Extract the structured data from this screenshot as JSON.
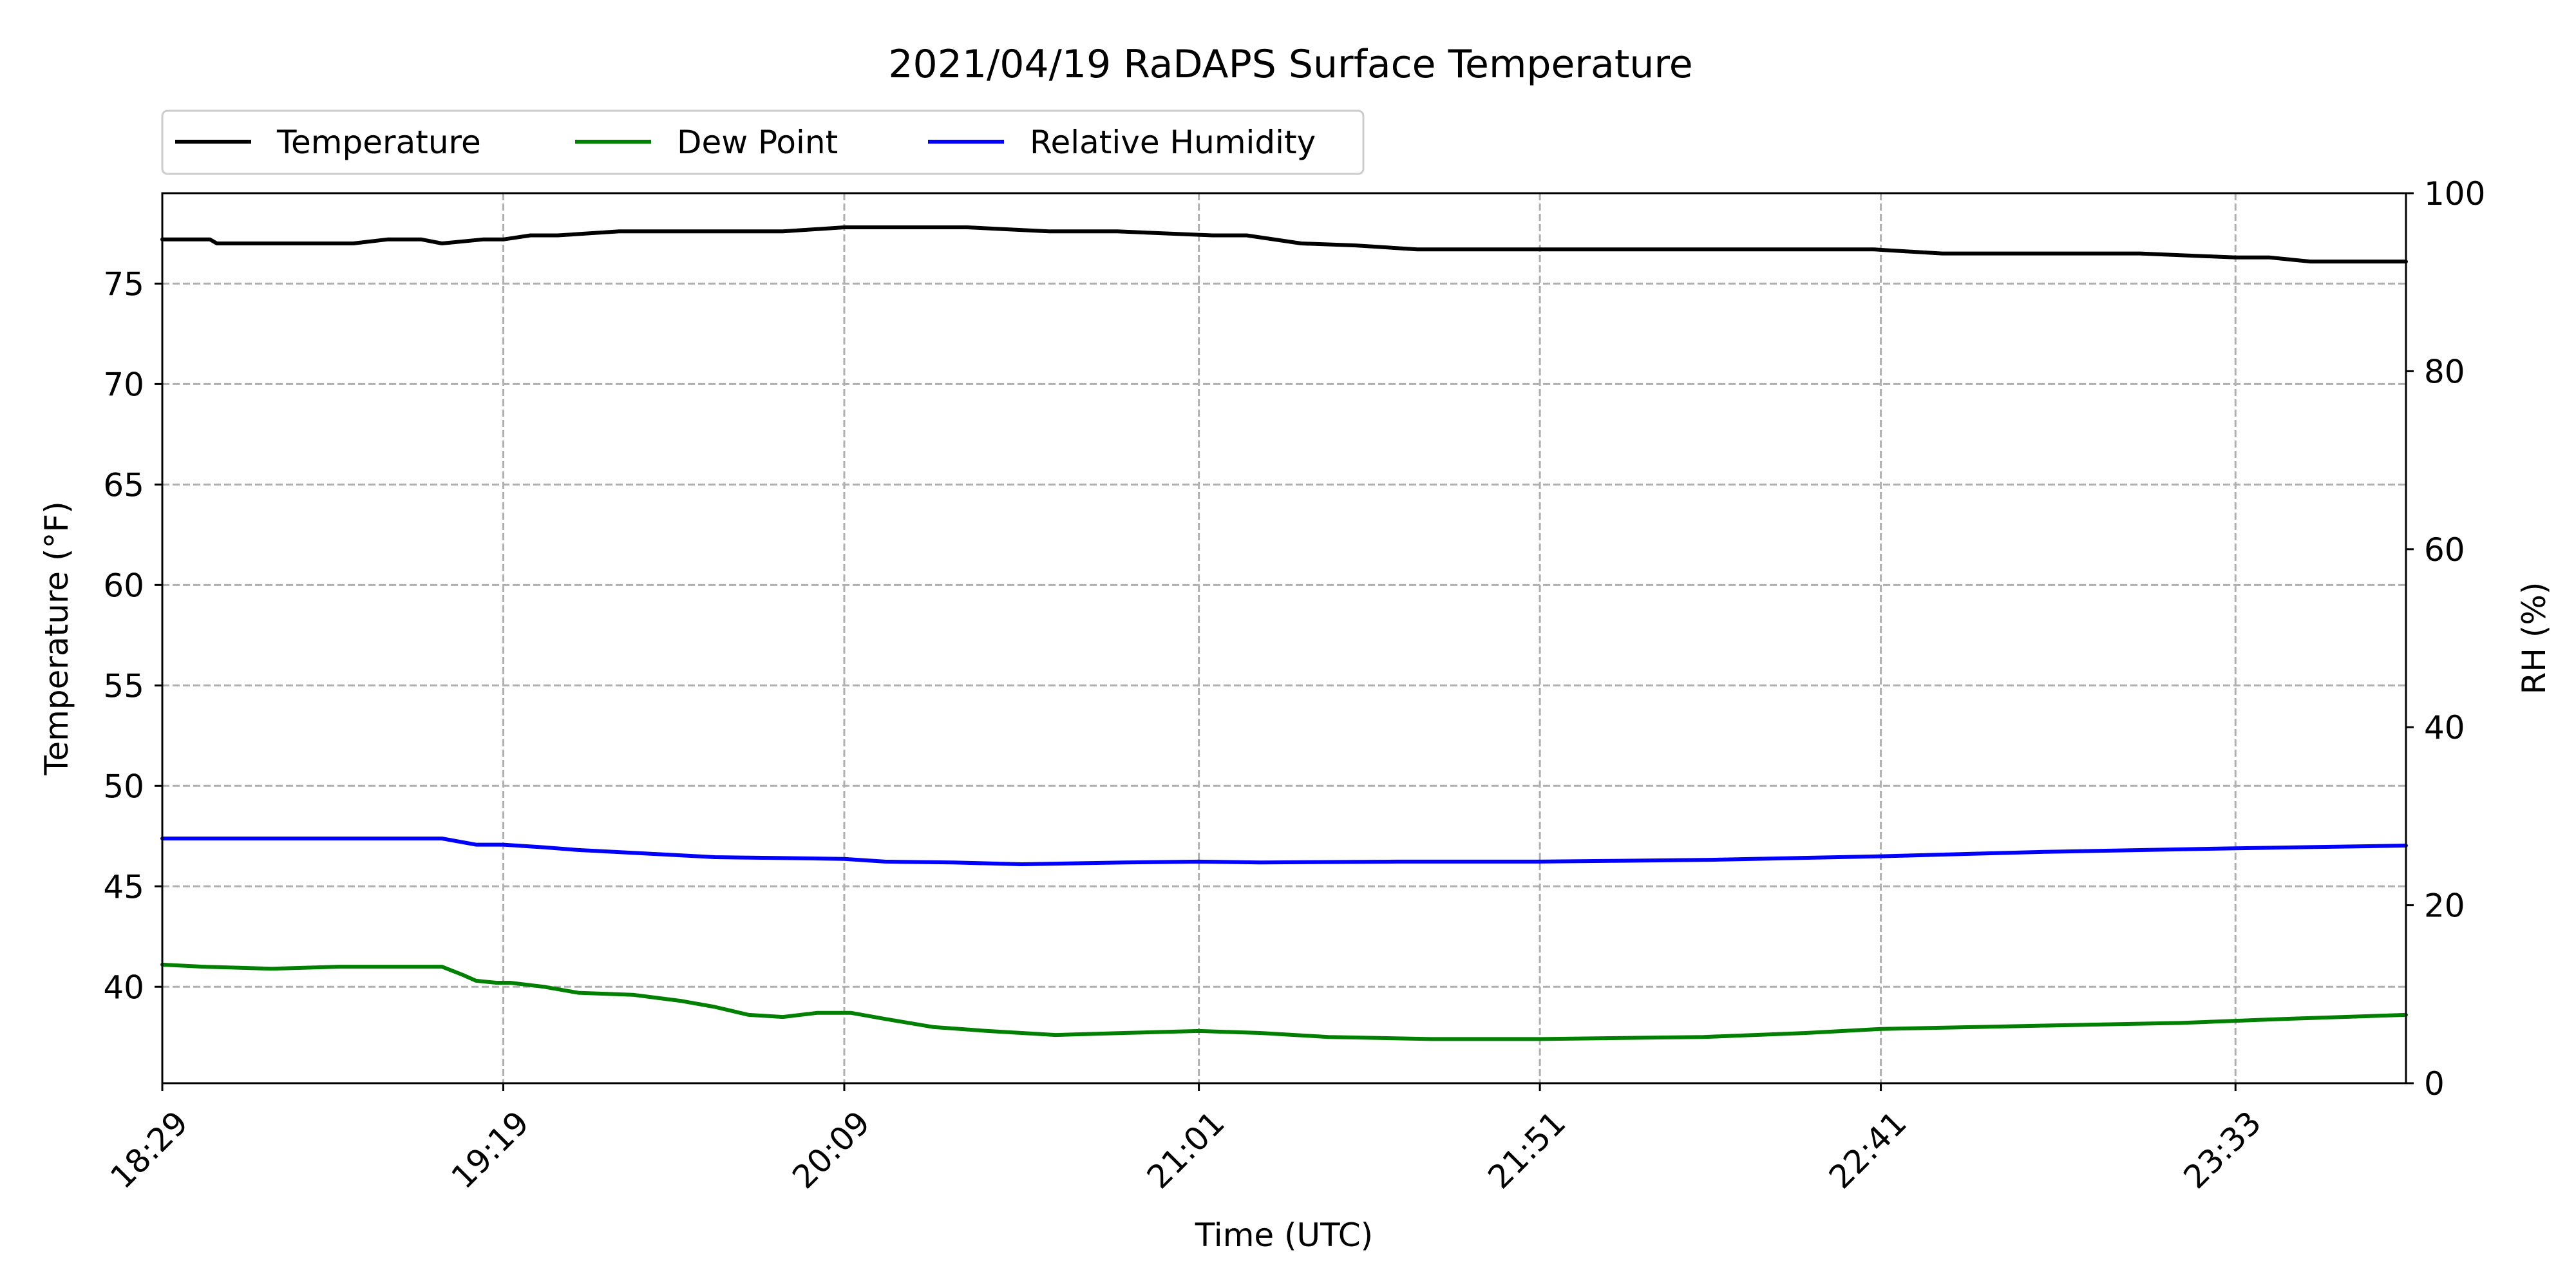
{
  "chart_data": {
    "type": "line",
    "title": "2021/04/19 RaDAPS Surface Temperature",
    "xlabel": "Time (UTC)",
    "ylabel": "Temperature ($^\\circ$F)",
    "ylabel_display": "Temperature (°F)",
    "y2label": "RH (%)",
    "x_tick_labels": [
      "18:29",
      "19:19",
      "20:09",
      "21:01",
      "21:51",
      "22:41",
      "23:33"
    ],
    "x_tick_minutes": [
      1109,
      1159,
      1209,
      1261,
      1311,
      1361,
      1413
    ],
    "xlim_minutes": [
      1109,
      1438
    ],
    "ylim": [
      35.2,
      79.5
    ],
    "y_ticks": [
      40,
      45,
      50,
      55,
      60,
      65,
      70,
      75
    ],
    "y2lim": [
      0,
      100
    ],
    "y2_ticks": [
      0,
      20,
      40,
      60,
      80,
      100
    ],
    "grid": true,
    "legend_position": "top-left, above plot, 3 columns",
    "series": [
      {
        "name": "Temperature",
        "color": "#000000",
        "axis": "left",
        "x_minutes": [
          1109,
          1116,
          1117,
          1125,
          1129,
          1137,
          1142,
          1147,
          1150,
          1156,
          1159,
          1163,
          1167,
          1176,
          1191,
          1200,
          1209,
          1219,
          1227,
          1239,
          1249,
          1263,
          1268,
          1276,
          1284,
          1293,
          1315,
          1335,
          1360,
          1370,
          1383,
          1399,
          1413,
          1418,
          1424,
          1438
        ],
        "values": [
          77.2,
          77.2,
          77.0,
          77.0,
          77.0,
          77.0,
          77.2,
          77.2,
          77.0,
          77.2,
          77.2,
          77.4,
          77.4,
          77.6,
          77.6,
          77.6,
          77.8,
          77.8,
          77.8,
          77.6,
          77.6,
          77.4,
          77.4,
          77.0,
          76.9,
          76.7,
          76.7,
          76.7,
          76.7,
          76.5,
          76.5,
          76.5,
          76.3,
          76.3,
          76.1,
          76.1
        ]
      },
      {
        "name": "Dew Point",
        "color": "#008000",
        "axis": "left",
        "x_minutes": [
          1109,
          1115,
          1125,
          1135,
          1145,
          1150,
          1153,
          1155,
          1158,
          1160,
          1165,
          1170,
          1178,
          1185,
          1190,
          1195,
          1200,
          1205,
          1210,
          1215,
          1222,
          1230,
          1240,
          1250,
          1261,
          1270,
          1280,
          1295,
          1311,
          1335,
          1350,
          1361,
          1375,
          1390,
          1405,
          1420,
          1438
        ],
        "values": [
          41.1,
          41.0,
          40.9,
          41.0,
          41.0,
          41.0,
          40.6,
          40.3,
          40.2,
          40.2,
          40.0,
          39.7,
          39.6,
          39.3,
          39.0,
          38.6,
          38.5,
          38.7,
          38.7,
          38.4,
          38.0,
          37.8,
          37.6,
          37.7,
          37.8,
          37.7,
          37.5,
          37.4,
          37.4,
          37.5,
          37.7,
          37.9,
          38.0,
          38.1,
          38.2,
          38.4,
          38.6
        ]
      },
      {
        "name": "Relative Humidity",
        "color": "#0000ff",
        "axis": "right",
        "x_minutes": [
          1109,
          1130,
          1150,
          1155,
          1159,
          1165,
          1170,
          1180,
          1190,
          1200,
          1209,
          1215,
          1225,
          1235,
          1250,
          1261,
          1270,
          1290,
          1311,
          1336,
          1361,
          1385,
          1413,
          1438
        ],
        "values": [
          27.5,
          27.5,
          27.5,
          26.8,
          26.8,
          26.5,
          26.2,
          25.8,
          25.4,
          25.3,
          25.2,
          24.9,
          24.8,
          24.6,
          24.8,
          24.9,
          24.8,
          24.9,
          24.9,
          25.1,
          25.5,
          26.0,
          26.4,
          26.7
        ]
      }
    ]
  }
}
